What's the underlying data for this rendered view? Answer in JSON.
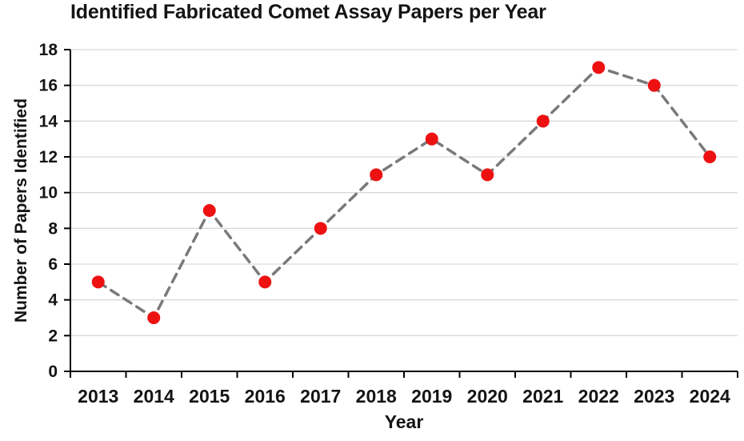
{
  "chart_data": {
    "type": "line",
    "title": "Identified Fabricated Comet Assay Papers per Year",
    "xlabel": "Year",
    "ylabel": "Number of Papers Identified",
    "categories": [
      "2013",
      "2014",
      "2015",
      "2016",
      "2017",
      "2018",
      "2019",
      "2020",
      "2021",
      "2022",
      "2023",
      "2024"
    ],
    "values": [
      5,
      3,
      9,
      5,
      8,
      11,
      13,
      11,
      14,
      17,
      16,
      12
    ],
    "ylim": [
      0,
      18
    ],
    "yticks": [
      0,
      2,
      4,
      6,
      8,
      10,
      12,
      14,
      16,
      18
    ],
    "grid": true,
    "legend": "none",
    "line_style": "dashed",
    "colors": {
      "marker": "#ee1111",
      "line": "#7a7a7a",
      "grid": "#d9d9d9",
      "axis": "#000000",
      "text": "#141414"
    }
  }
}
